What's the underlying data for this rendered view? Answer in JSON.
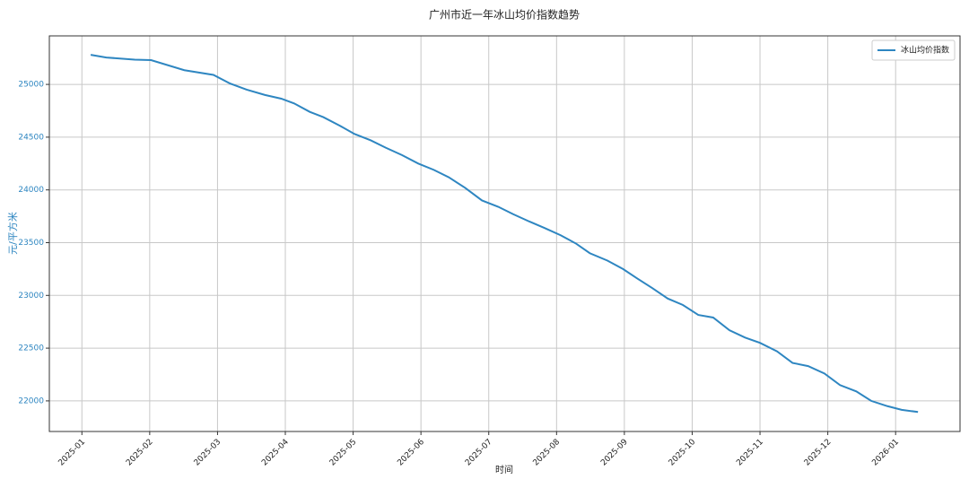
{
  "chart_data": {
    "type": "line",
    "title": "广州市近一年冰山均价指数趋势",
    "x_label": "时间",
    "y_label": "元/平方米",
    "x": [
      0.13,
      0.36,
      0.78,
      1.02,
      1.51,
      1.94,
      2.18,
      2.43,
      2.7,
      2.94,
      3.13,
      3.36,
      3.56,
      3.8,
      4.02,
      4.26,
      4.48,
      4.72,
      4.96,
      5.19,
      5.41,
      5.65,
      5.9,
      6.14,
      6.36,
      6.6,
      6.82,
      7.06,
      7.29,
      7.49,
      7.75,
      7.98,
      8.19,
      8.41,
      8.64,
      8.86,
      9.09,
      9.31,
      9.55,
      9.78,
      10.0,
      10.25,
      10.48,
      10.71,
      10.95,
      11.18,
      11.42,
      11.64,
      11.88,
      12.09,
      12.33
    ],
    "series": [
      {
        "name": "冰山均价指数",
        "color": "#2e86c1",
        "values": [
          25280,
          25255,
          25235,
          25230,
          25135,
          25090,
          25010,
          24950,
          24900,
          24865,
          24820,
          24740,
          24690,
          24610,
          24530,
          24470,
          24400,
          24330,
          24250,
          24190,
          24120,
          24020,
          23900,
          23840,
          23770,
          23700,
          23640,
          23570,
          23490,
          23400,
          23330,
          23250,
          23160,
          23070,
          22970,
          22910,
          22815,
          22790,
          22670,
          22600,
          22550,
          22470,
          22360,
          22330,
          22260,
          22150,
          22090,
          22000,
          21950,
          21915,
          21895
        ]
      }
    ],
    "xlim": [
      -0.48,
      12.95
    ],
    "xticks": [
      {
        "value": 0,
        "label": "2025-01"
      },
      {
        "value": 1,
        "label": "2025-02"
      },
      {
        "value": 2,
        "label": "2025-03"
      },
      {
        "value": 3,
        "label": "2025-04"
      },
      {
        "value": 4,
        "label": "2025-05"
      },
      {
        "value": 5,
        "label": "2025-06"
      },
      {
        "value": 6,
        "label": "2025-07"
      },
      {
        "value": 7,
        "label": "2025-08"
      },
      {
        "value": 8,
        "label": "2025-09"
      },
      {
        "value": 9,
        "label": "2025-10"
      },
      {
        "value": 10,
        "label": "2025-11"
      },
      {
        "value": 11,
        "label": "2025-12"
      },
      {
        "value": 12,
        "label": "2026-01"
      }
    ],
    "ylim": [
      21710,
      25460
    ],
    "yticks": [
      22000,
      22500,
      23000,
      23500,
      24000,
      24500,
      25000
    ],
    "grid": true,
    "legend": "upper right",
    "y_axis_color": "#2e86c1"
  }
}
